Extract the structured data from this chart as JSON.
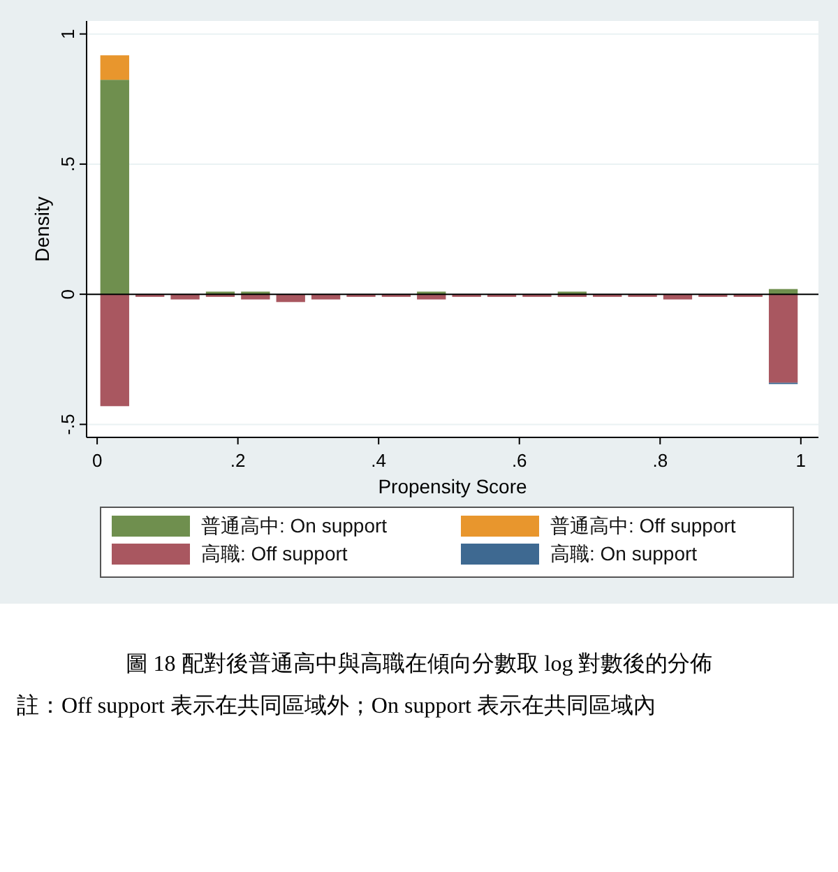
{
  "chart_data": {
    "type": "bar",
    "stacked": true,
    "xlabel": "Propensity Score",
    "ylabel": "Density",
    "x": [
      0.025,
      0.075,
      0.125,
      0.175,
      0.225,
      0.275,
      0.325,
      0.375,
      0.425,
      0.475,
      0.525,
      0.575,
      0.625,
      0.675,
      0.725,
      0.775,
      0.825,
      0.875,
      0.925,
      0.975
    ],
    "series": [
      {
        "name": "普通高中: On support",
        "color": "#6f8f4e",
        "values": [
          0.824,
          null,
          null,
          0.01,
          0.01,
          null,
          null,
          null,
          null,
          0.01,
          null,
          null,
          null,
          0.01,
          null,
          null,
          null,
          null,
          null,
          0.02
        ]
      },
      {
        "name": "普通高中: Off support",
        "color": "#e8962d",
        "values": [
          0.094,
          null,
          null,
          null,
          null,
          null,
          null,
          null,
          null,
          null,
          null,
          null,
          null,
          null,
          null,
          null,
          null,
          null,
          null,
          null
        ]
      },
      {
        "name": "高職: Off support",
        "color": "#a95760",
        "values": [
          -0.43,
          -0.01,
          -0.02,
          -0.01,
          -0.02,
          -0.03,
          -0.02,
          -0.01,
          -0.01,
          -0.02,
          -0.01,
          -0.01,
          -0.01,
          -0.01,
          -0.01,
          -0.01,
          -0.02,
          -0.01,
          -0.01,
          -0.34
        ]
      },
      {
        "name": "高職: On support",
        "color": "#3e6991",
        "values": [
          null,
          null,
          null,
          null,
          null,
          null,
          null,
          null,
          null,
          null,
          null,
          null,
          null,
          null,
          null,
          null,
          null,
          null,
          null,
          -0.005
        ]
      }
    ],
    "xlim": [
      -0.015,
      1.025
    ],
    "ylim": [
      -0.55,
      1.05
    ],
    "xticks": [
      0,
      {
        "value": 0.2,
        "label": ".2"
      },
      {
        "value": 0.4,
        "label": ".4"
      },
      {
        "value": 0.6,
        "label": ".6"
      },
      {
        "value": 0.8,
        "label": ".8"
      },
      1
    ],
    "yticks": [
      {
        "value": -0.5,
        "label": "-.5"
      },
      0,
      {
        "value": 0.5,
        "label": ".5"
      },
      1
    ],
    "grid": "y",
    "legend": "bottom",
    "ref_lines": [
      {
        "axis": "y",
        "value": 0,
        "color": "#000000"
      }
    ],
    "annotations": [
      "圖 18 配對後普通高中與高職在傾向分數取 log 對數後的分佈",
      "註：Off support 表示在共同區域外；On support 表示在共同區域內"
    ]
  }
}
